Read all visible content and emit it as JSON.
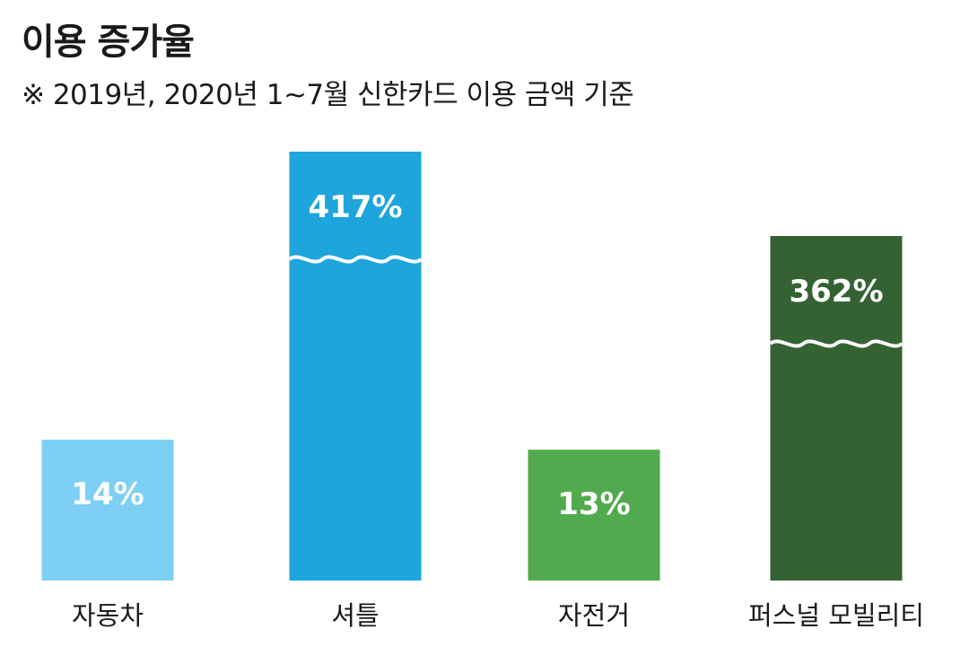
{
  "chart_data": {
    "type": "bar",
    "title": "이용 증가율",
    "subtitle": "※ 2019년, 2020년 1~7월 신한카드 이용 금액 기준",
    "categories": [
      "자동차",
      "셔틀",
      "자전거",
      "퍼스널 모빌리티"
    ],
    "values": [
      14,
      417,
      13,
      362
    ],
    "value_labels": [
      "14%",
      "417%",
      "13%",
      "362%"
    ],
    "value_unit": "%",
    "axis_break": [
      false,
      true,
      false,
      true
    ],
    "colors": [
      "#7ecff4",
      "#1ea5db",
      "#52aa4f",
      "#356232"
    ],
    "xlabel": "",
    "ylabel": "",
    "grid": false
  }
}
